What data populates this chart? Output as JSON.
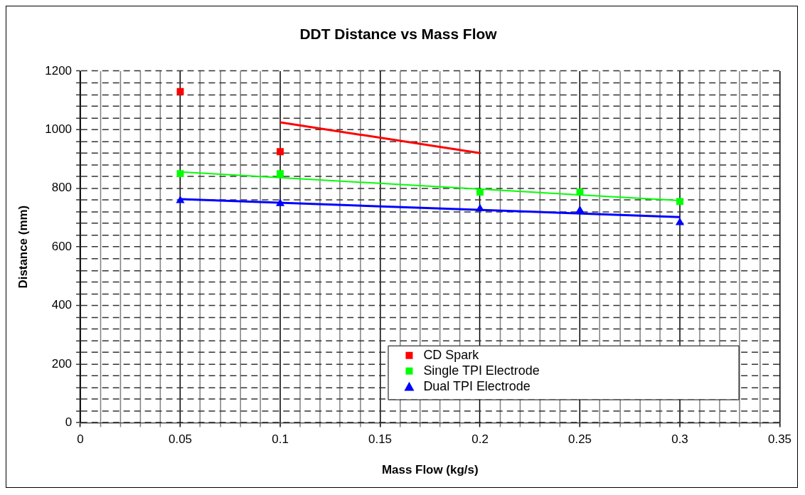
{
  "chart_data": {
    "type": "scatter",
    "title": "DDT Distance vs Mass Flow",
    "xlabel": "Mass Flow (kg/s)",
    "ylabel": "Distance (mm)",
    "xlim": [
      0,
      0.35
    ],
    "ylim": [
      0,
      1200
    ],
    "xticks": [
      0,
      {
        "value": 0.01,
        "label": null
      },
      {
        "value": 0.02,
        "label": null
      },
      {
        "value": 0.03,
        "label": null
      },
      {
        "value": 0.04,
        "label": null
      },
      0.05,
      {
        "value": 0.06,
        "label": null
      },
      {
        "value": 0.07,
        "label": null
      },
      {
        "value": 0.08,
        "label": null
      },
      {
        "value": 0.09,
        "label": null
      },
      0.1,
      {
        "value": 0.11,
        "label": null
      },
      {
        "value": 0.12,
        "label": null
      },
      {
        "value": 0.13,
        "label": null
      },
      {
        "value": 0.14,
        "label": null
      },
      0.15,
      {
        "value": 0.16,
        "label": null
      },
      {
        "value": 0.17,
        "label": null
      },
      {
        "value": 0.18,
        "label": null
      },
      {
        "value": 0.19,
        "label": null
      },
      0.2,
      {
        "value": 0.21,
        "label": null
      },
      {
        "value": 0.22,
        "label": null
      },
      {
        "value": 0.23,
        "label": null
      },
      {
        "value": 0.24,
        "label": null
      },
      0.25,
      {
        "value": 0.26,
        "label": null
      },
      {
        "value": 0.27,
        "label": null
      },
      {
        "value": 0.28,
        "label": null
      },
      {
        "value": 0.29,
        "label": null
      },
      0.3,
      {
        "value": 0.31,
        "label": null
      },
      {
        "value": 0.32,
        "label": null
      },
      {
        "value": 0.33,
        "label": null
      },
      {
        "value": 0.34,
        "label": null
      },
      0.35
    ],
    "yticks": [
      0,
      {
        "value": 40,
        "label": null
      },
      {
        "value": 80,
        "label": null
      },
      {
        "value": 120,
        "label": null
      },
      {
        "value": 160,
        "label": null
      },
      200,
      {
        "value": 240,
        "label": null
      },
      {
        "value": 280,
        "label": null
      },
      {
        "value": 320,
        "label": null
      },
      {
        "value": 360,
        "label": null
      },
      400,
      {
        "value": 440,
        "label": null
      },
      {
        "value": 480,
        "label": null
      },
      {
        "value": 520,
        "label": null
      },
      {
        "value": 560,
        "label": null
      },
      600,
      {
        "value": 640,
        "label": null
      },
      {
        "value": 680,
        "label": null
      },
      {
        "value": 720,
        "label": null
      },
      {
        "value": 760,
        "label": null
      },
      800,
      {
        "value": 840,
        "label": null
      },
      {
        "value": 880,
        "label": null
      },
      {
        "value": 920,
        "label": null
      },
      {
        "value": 960,
        "label": null
      },
      1000,
      {
        "value": 1040,
        "label": null
      },
      {
        "value": 1080,
        "label": null
      },
      {
        "value": 1120,
        "label": null
      },
      {
        "value": 1160,
        "label": null
      },
      1200
    ],
    "grid": true,
    "legend": "bottom right",
    "series": [
      {
        "name": "CD Spark",
        "color": "#ff0000",
        "marker": "square",
        "x": [
          0.05,
          0.1
        ],
        "values": [
          1130,
          925
        ]
      },
      {
        "name": "Single TPI Electrode",
        "color": "#00ff00",
        "marker": "square",
        "x": [
          0.05,
          0.1,
          0.2,
          0.25,
          0.3
        ],
        "values": [
          850,
          850,
          787,
          787,
          755
        ]
      },
      {
        "name": "Dual TPI Electrode",
        "color": "#0000ff",
        "marker": "triangle",
        "x": [
          0.05,
          0.1,
          0.2,
          0.25,
          0.3
        ],
        "values": [
          758,
          748,
          730,
          724,
          683
        ]
      },
      {
        "type": "line",
        "color": "#ff0000",
        "x": [
          0.1,
          0.2
        ],
        "values": [
          1025,
          920
        ]
      },
      {
        "type": "line",
        "color": "#00ff00",
        "x": [
          0.05,
          0.3
        ],
        "values": [
          856,
          758
        ]
      },
      {
        "type": "line",
        "color": "#0000ff",
        "x": [
          0.05,
          0.3
        ],
        "values": [
          763,
          702
        ]
      }
    ]
  }
}
